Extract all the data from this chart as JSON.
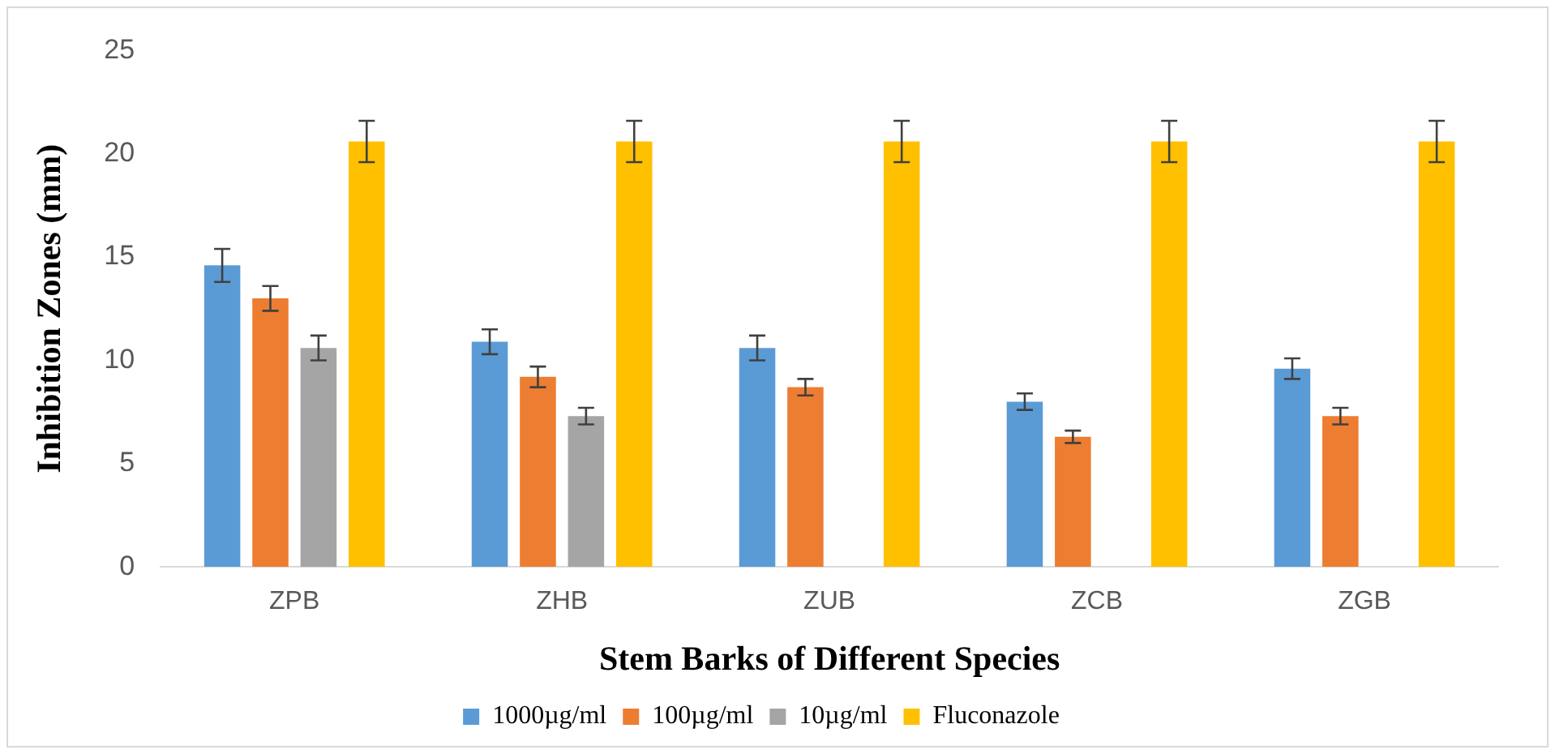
{
  "chart_data": {
    "type": "bar",
    "xlabel": "Stem Barks of Different Species",
    "ylabel": "Inhibition Zones (mm)",
    "categories": [
      "ZPB",
      "ZHB",
      "ZUB",
      "ZCB",
      "ZGB"
    ],
    "series": [
      {
        "name": "1000µg/ml",
        "color": "#5b9bd5",
        "values": [
          14.6,
          10.9,
          10.6,
          8.0,
          9.6
        ],
        "errors": [
          0.8,
          0.6,
          0.6,
          0.4,
          0.5
        ]
      },
      {
        "name": "100µg/ml",
        "color": "#ed7d31",
        "values": [
          13.0,
          9.2,
          8.7,
          6.3,
          7.3
        ],
        "errors": [
          0.6,
          0.5,
          0.4,
          0.3,
          0.4
        ]
      },
      {
        "name": "10µg/ml",
        "color": "#a5a5a5",
        "values": [
          10.6,
          7.3,
          null,
          null,
          null
        ],
        "errors": [
          0.6,
          0.4,
          null,
          null,
          null
        ]
      },
      {
        "name": "Fluconazole",
        "color": "#ffc000",
        "values": [
          20.6,
          20.6,
          20.6,
          20.6,
          20.6
        ],
        "errors": [
          1.0,
          1.0,
          1.0,
          1.0,
          1.0
        ]
      }
    ],
    "ylim": [
      0,
      25
    ],
    "yticks": [
      0,
      5,
      10,
      15,
      20,
      25
    ],
    "grid": false,
    "legend": "bottom"
  }
}
